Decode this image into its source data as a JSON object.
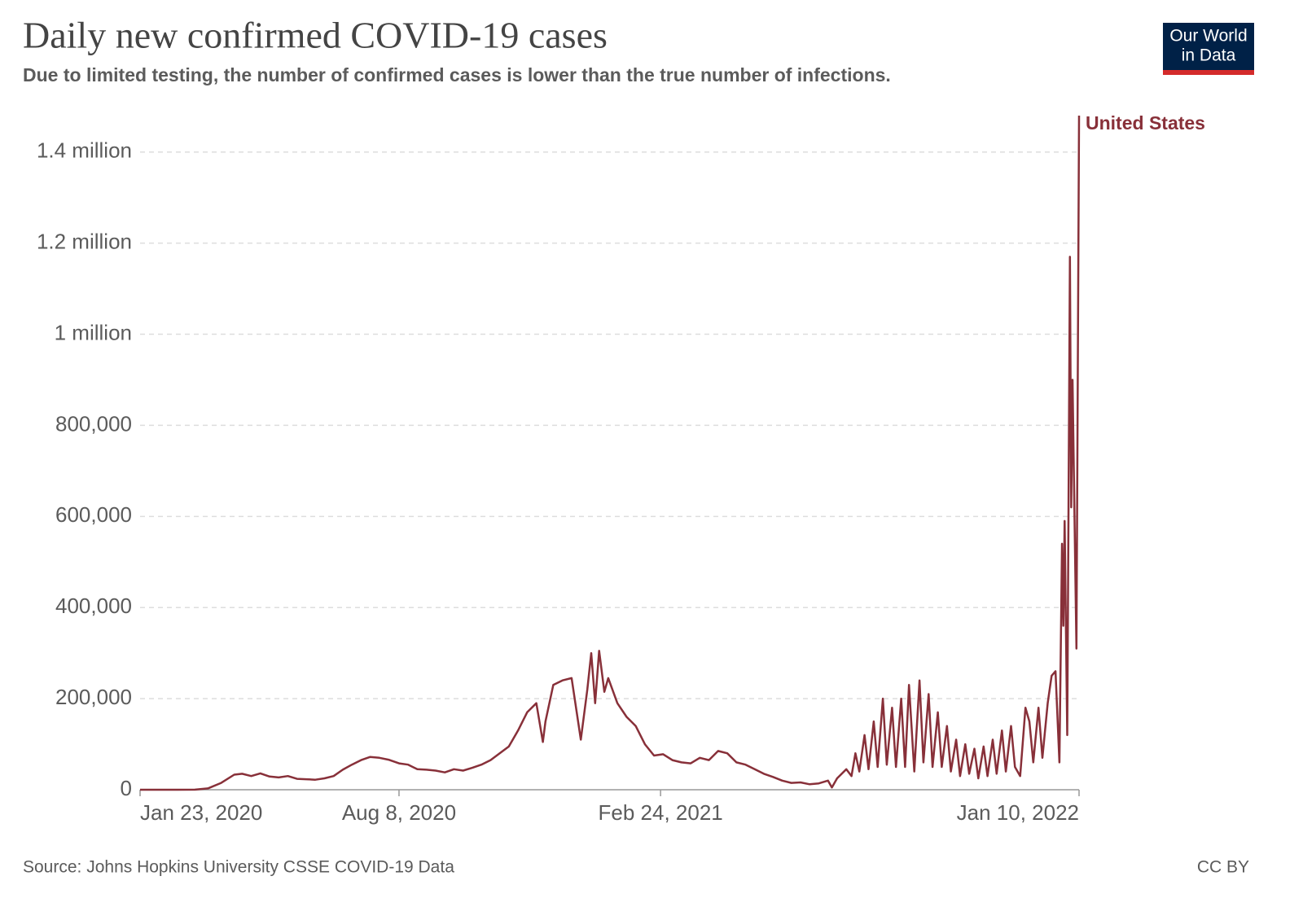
{
  "chart_data": {
    "type": "line",
    "title": "Daily new confirmed COVID-19 cases",
    "subtitle": "Due to limited testing, the number of confirmed cases is lower than the true number of infections.",
    "logo": [
      "Our World",
      "in Data"
    ],
    "source": "Source: Johns Hopkins University CSSE COVID-19 Data",
    "license": "CC BY",
    "x": [
      "2020-01-23",
      "2020-02-20",
      "2020-03-05",
      "2020-03-15",
      "2020-03-25",
      "2020-04-04",
      "2020-04-10",
      "2020-04-17",
      "2020-04-24",
      "2020-05-01",
      "2020-05-08",
      "2020-05-15",
      "2020-05-22",
      "2020-05-29",
      "2020-06-05",
      "2020-06-12",
      "2020-06-19",
      "2020-06-26",
      "2020-07-03",
      "2020-07-10",
      "2020-07-17",
      "2020-07-24",
      "2020-07-31",
      "2020-08-08",
      "2020-08-15",
      "2020-08-22",
      "2020-08-29",
      "2020-09-05",
      "2020-09-12",
      "2020-09-19",
      "2020-09-26",
      "2020-10-03",
      "2020-10-10",
      "2020-10-17",
      "2020-10-24",
      "2020-10-31",
      "2020-11-07",
      "2020-11-14",
      "2020-11-21",
      "2020-11-26",
      "2020-11-28",
      "2020-12-04",
      "2020-12-11",
      "2020-12-18",
      "2020-12-25",
      "2020-12-30",
      "2021-01-02",
      "2021-01-05",
      "2021-01-08",
      "2021-01-12",
      "2021-01-15",
      "2021-01-22",
      "2021-01-29",
      "2021-02-05",
      "2021-02-12",
      "2021-02-19",
      "2021-02-26",
      "2021-03-05",
      "2021-03-12",
      "2021-03-19",
      "2021-03-26",
      "2021-04-02",
      "2021-04-09",
      "2021-04-16",
      "2021-04-23",
      "2021-04-30",
      "2021-05-07",
      "2021-05-14",
      "2021-05-21",
      "2021-05-28",
      "2021-06-04",
      "2021-06-11",
      "2021-06-18",
      "2021-06-25",
      "2021-07-02",
      "2021-07-05",
      "2021-07-09",
      "2021-07-16",
      "2021-07-20",
      "2021-07-23",
      "2021-07-26",
      "2021-07-30",
      "2021-08-02",
      "2021-08-06",
      "2021-08-09",
      "2021-08-13",
      "2021-08-16",
      "2021-08-20",
      "2021-08-23",
      "2021-08-27",
      "2021-08-30",
      "2021-09-02",
      "2021-09-06",
      "2021-09-10",
      "2021-09-13",
      "2021-09-17",
      "2021-09-20",
      "2021-09-24",
      "2021-09-27",
      "2021-10-01",
      "2021-10-04",
      "2021-10-08",
      "2021-10-11",
      "2021-10-15",
      "2021-10-18",
      "2021-10-22",
      "2021-10-25",
      "2021-10-29",
      "2021-11-01",
      "2021-11-05",
      "2021-11-08",
      "2021-11-12",
      "2021-11-15",
      "2021-11-19",
      "2021-11-22",
      "2021-11-26",
      "2021-11-30",
      "2021-12-03",
      "2021-12-06",
      "2021-12-10",
      "2021-12-13",
      "2021-12-17",
      "2021-12-20",
      "2021-12-23",
      "2021-12-26",
      "2021-12-28",
      "2021-12-29",
      "2021-12-30",
      "2022-01-01",
      "2022-01-03",
      "2022-01-04",
      "2022-01-05",
      "2022-01-06",
      "2022-01-08",
      "2022-01-10"
    ],
    "series": [
      {
        "name": "United States",
        "color": "#883039",
        "values": [
          0,
          0,
          200,
          3000,
          15000,
          33000,
          35000,
          30000,
          36000,
          29000,
          27000,
          30000,
          24000,
          23000,
          22000,
          25000,
          30000,
          44000,
          55000,
          65000,
          72000,
          70000,
          66000,
          58000,
          55000,
          45000,
          44000,
          42000,
          38000,
          45000,
          42000,
          48000,
          55000,
          65000,
          80000,
          95000,
          130000,
          170000,
          190000,
          105000,
          150000,
          230000,
          240000,
          245000,
          110000,
          220000,
          300000,
          190000,
          305000,
          215000,
          245000,
          190000,
          160000,
          140000,
          100000,
          75000,
          78000,
          65000,
          60000,
          58000,
          70000,
          65000,
          85000,
          80000,
          60000,
          55000,
          45000,
          35000,
          28000,
          20000,
          15000,
          16000,
          12000,
          14000,
          20000,
          5000,
          25000,
          45000,
          30000,
          80000,
          40000,
          120000,
          45000,
          150000,
          50000,
          200000,
          55000,
          180000,
          50000,
          200000,
          50000,
          230000,
          40000,
          240000,
          60000,
          210000,
          50000,
          170000,
          50000,
          140000,
          40000,
          110000,
          30000,
          100000,
          35000,
          90000,
          25000,
          95000,
          30000,
          110000,
          35000,
          130000,
          40000,
          140000,
          50000,
          30000,
          180000,
          150000,
          60000,
          180000,
          70000,
          190000,
          250000,
          260000,
          60000,
          540000,
          360000,
          590000,
          120000,
          1170000,
          620000,
          900000,
          700000,
          310000,
          1480000
        ]
      }
    ],
    "xlim": [
      "2020-01-23",
      "2022-01-10"
    ],
    "xticks": [
      {
        "value": "2020-01-23",
        "label": "Jan 23, 2020"
      },
      {
        "value": "2020-08-08",
        "label": "Aug 8, 2020"
      },
      {
        "value": "2021-02-24",
        "label": "Feb 24, 2021"
      },
      {
        "value": "2022-01-10",
        "label": "Jan 10, 2022"
      }
    ],
    "ylim": [
      0,
      1480000
    ],
    "yticks": [
      0,
      {
        "value": 200000,
        "label": "200,000"
      },
      {
        "value": 400000,
        "label": "400,000"
      },
      {
        "value": 600000,
        "label": "600,000"
      },
      {
        "value": 800000,
        "label": "800,000"
      },
      {
        "value": 1000000,
        "label": "1 million"
      },
      {
        "value": 1200000,
        "label": "1.2 million"
      },
      {
        "value": 1400000,
        "label": "1.4 million"
      }
    ],
    "grid": true
  }
}
